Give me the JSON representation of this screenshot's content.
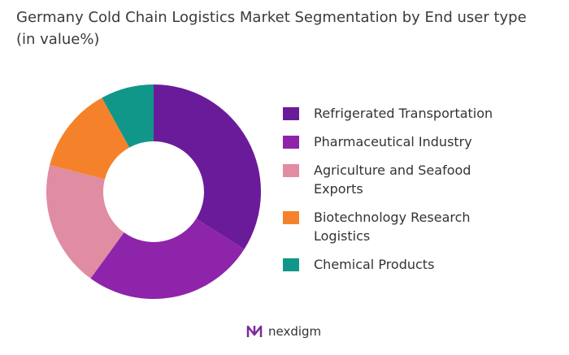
{
  "chart_data": {
    "type": "donut",
    "title": "Germany Cold Chain Logistics  Market Segmentation by End user type (in value%)",
    "categories": [
      "Refrigerated Transportation",
      "Pharmaceutical Industry",
      "Agriculture and Seafood Exports",
      "Biotechnology Research Logistics",
      "Chemical Products"
    ],
    "values": [
      34,
      26,
      19,
      13,
      8
    ],
    "colors": [
      "#6a1b9a",
      "#8e24aa",
      "#e08ca2",
      "#f5822a",
      "#10978a"
    ]
  },
  "footer": {
    "logo": "nexdigm"
  }
}
